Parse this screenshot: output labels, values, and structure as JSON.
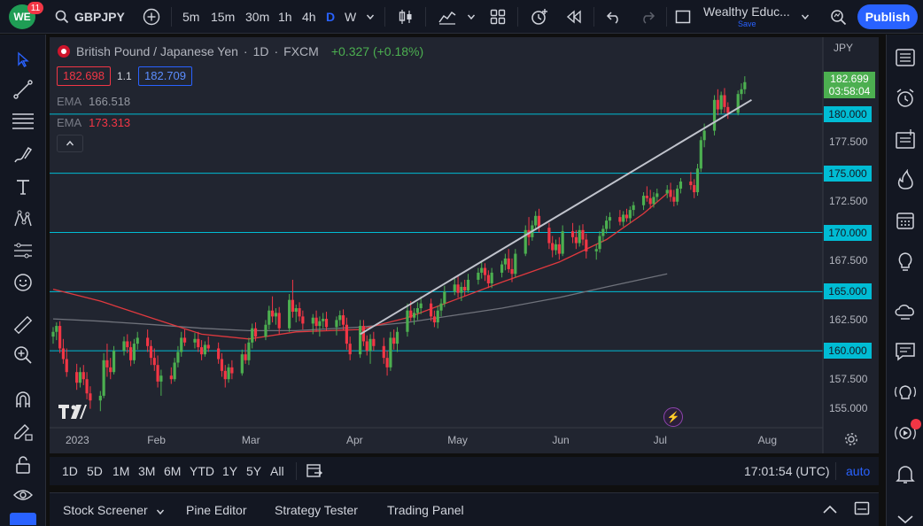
{
  "header": {
    "logo_text": "WE",
    "badge": "11",
    "symbol": "GBPJPY",
    "timeframes": [
      "5m",
      "15m",
      "30m",
      "1h",
      "4h",
      "D",
      "W"
    ],
    "active_timeframe": "D",
    "layout_name": "Wealthy Educ...",
    "layout_status": "Save",
    "publish_label": "Publish"
  },
  "legend": {
    "title": "British Pound / Japanese Yen",
    "interval": "1D",
    "source": "FXCM",
    "change": "+0.327 (+0.18%)",
    "bid": "182.698",
    "spread": "1.1",
    "ask": "182.709",
    "ema1_label": "EMA",
    "ema1_value": "166.518",
    "ema2_label": "EMA",
    "ema2_value": "173.313"
  },
  "price_axis": {
    "currency": "JPY",
    "current_price": "182.699",
    "countdown": "03:58:04",
    "ticks": [
      {
        "v": 180.0,
        "label": "180.000",
        "hline": true
      },
      {
        "v": 177.5,
        "label": "177.500",
        "hline": false
      },
      {
        "v": 175.0,
        "label": "175.000",
        "hline": true
      },
      {
        "v": 172.5,
        "label": "172.500",
        "hline": false
      },
      {
        "v": 170.0,
        "label": "170.000",
        "hline": true
      },
      {
        "v": 167.5,
        "label": "167.500",
        "hline": false
      },
      {
        "v": 165.0,
        "label": "165.000",
        "hline": true
      },
      {
        "v": 162.5,
        "label": "162.500",
        "hline": false
      },
      {
        "v": 160.0,
        "label": "160.000",
        "hline": true
      },
      {
        "v": 157.5,
        "label": "157.500",
        "hline": false
      },
      {
        "v": 155.0,
        "label": "155.000",
        "hline": false
      }
    ]
  },
  "time_axis": [
    "2023",
    "Feb",
    "Mar",
    "Apr",
    "May",
    "Jun",
    "Jul",
    "Aug"
  ],
  "range_bar": {
    "ranges": [
      "1D",
      "5D",
      "1M",
      "3M",
      "6M",
      "YTD",
      "1Y",
      "5Y",
      "All"
    ],
    "clock": "17:01:54 (UTC)",
    "scale": "auto"
  },
  "bottom_panel": {
    "tabs": [
      "Stock Screener",
      "Pine Editor",
      "Strategy Tester",
      "Trading Panel"
    ]
  },
  "colors": {
    "up": "#4caf50",
    "down": "#f23645",
    "hline": "#00bcd4",
    "trendline": "#c0c3cc",
    "ema_fast": "#e0393e",
    "ema_slow": "#6f727b",
    "accent": "#2962ff"
  },
  "chart_data": {
    "type": "candlestick",
    "symbol": "GBPJPY",
    "interval": "1D",
    "x_range": [
      "2023-01-02",
      "2023-08-15"
    ],
    "y_range": [
      153.5,
      186.5
    ],
    "horizontal_levels": [
      180.0,
      175.0,
      170.0,
      165.0,
      160.0
    ],
    "trendline": [
      {
        "date": "2023-04-03",
        "price": 161.4
      },
      {
        "date": "2023-07-28",
        "price": 181.2
      }
    ],
    "ema_fast": [
      [
        "2023-01-02",
        165.2
      ],
      [
        "2023-01-16",
        164.2
      ],
      [
        "2023-02-01",
        162.7
      ],
      [
        "2023-02-15",
        161.4
      ],
      [
        "2023-03-01",
        161.0
      ],
      [
        "2023-03-15",
        161.6
      ],
      [
        "2023-04-03",
        161.8
      ],
      [
        "2023-04-17",
        162.8
      ],
      [
        "2023-05-01",
        164.3
      ],
      [
        "2023-05-15",
        165.8
      ],
      [
        "2023-06-01",
        167.5
      ],
      [
        "2023-06-15",
        169.4
      ],
      [
        "2023-06-26",
        171.6
      ],
      [
        "2023-07-03",
        173.3
      ]
    ],
    "ema_slow": [
      [
        "2023-01-02",
        162.7
      ],
      [
        "2023-01-16",
        162.5
      ],
      [
        "2023-02-01",
        162.2
      ],
      [
        "2023-02-15",
        161.9
      ],
      [
        "2023-03-01",
        161.7
      ],
      [
        "2023-03-15",
        161.7
      ],
      [
        "2023-04-03",
        162.0
      ],
      [
        "2023-04-17",
        162.4
      ],
      [
        "2023-05-01",
        163.0
      ],
      [
        "2023-05-15",
        163.6
      ],
      [
        "2023-06-01",
        164.5
      ],
      [
        "2023-06-15",
        165.4
      ],
      [
        "2023-07-03",
        166.5
      ]
    ],
    "candles": [
      [
        "2023-01-02",
        161.2,
        162.0,
        160.6,
        161.6
      ],
      [
        "2023-01-03",
        161.6,
        162.4,
        160.9,
        162.1
      ],
      [
        "2023-01-04",
        162.1,
        162.5,
        159.8,
        160.2
      ],
      [
        "2023-01-05",
        160.2,
        161.0,
        158.9,
        159.3
      ],
      [
        "2023-01-06",
        159.3,
        160.2,
        157.8,
        158.2
      ],
      [
        "2023-01-09",
        158.2,
        158.9,
        156.7,
        157.3
      ],
      [
        "2023-01-10",
        157.3,
        158.6,
        156.9,
        158.2
      ],
      [
        "2023-01-11",
        158.2,
        158.8,
        157.1,
        157.6
      ],
      [
        "2023-01-12",
        157.6,
        158.2,
        155.9,
        156.4
      ],
      [
        "2023-01-13",
        156.4,
        157.0,
        155.1,
        155.8
      ],
      [
        "2023-01-16",
        155.8,
        156.6,
        154.9,
        156.2
      ],
      [
        "2023-01-17",
        156.2,
        159.8,
        156.0,
        159.2
      ],
      [
        "2023-01-18",
        159.2,
        160.6,
        157.8,
        158.6
      ],
      [
        "2023-01-19",
        158.6,
        159.4,
        157.6,
        158.2
      ],
      [
        "2023-01-20",
        158.2,
        160.4,
        158.0,
        160.0
      ],
      [
        "2023-01-23",
        160.0,
        161.2,
        159.6,
        160.8
      ],
      [
        "2023-01-24",
        160.8,
        161.4,
        159.8,
        160.3
      ],
      [
        "2023-01-25",
        160.3,
        160.8,
        158.7,
        159.2
      ],
      [
        "2023-01-26",
        159.2,
        161.0,
        158.9,
        160.6
      ],
      [
        "2023-01-27",
        160.6,
        161.6,
        160.1,
        161.1
      ],
      [
        "2023-01-30",
        161.1,
        161.8,
        159.9,
        160.4
      ],
      [
        "2023-01-31",
        160.4,
        160.9,
        158.8,
        159.4
      ],
      [
        "2023-02-01",
        159.4,
        160.2,
        158.3,
        158.8
      ],
      [
        "2023-02-02",
        158.8,
        159.6,
        156.9,
        157.4
      ],
      [
        "2023-02-03",
        157.4,
        158.4,
        156.2,
        157.9
      ],
      [
        "2023-02-06",
        157.9,
        158.6,
        157.2,
        157.6
      ],
      [
        "2023-02-07",
        157.6,
        159.4,
        157.4,
        159.0
      ],
      [
        "2023-02-08",
        159.0,
        160.4,
        158.6,
        159.9
      ],
      [
        "2023-02-09",
        159.9,
        161.6,
        159.5,
        161.1
      ],
      [
        "2023-02-10",
        161.1,
        161.8,
        160.4,
        160.7
      ],
      [
        "2023-02-13",
        160.7,
        161.5,
        160.2,
        161.0
      ],
      [
        "2023-02-14",
        161.0,
        161.6,
        159.9,
        160.3
      ],
      [
        "2023-02-15",
        160.3,
        160.9,
        159.2,
        159.7
      ],
      [
        "2023-02-16",
        159.7,
        160.8,
        159.5,
        160.5
      ],
      [
        "2023-02-17",
        160.5,
        161.2,
        159.9,
        160.2
      ],
      [
        "2023-02-20",
        160.2,
        160.7,
        158.9,
        159.3
      ],
      [
        "2023-02-21",
        159.3,
        159.8,
        157.8,
        158.3
      ],
      [
        "2023-02-22",
        158.3,
        158.8,
        156.9,
        157.6
      ],
      [
        "2023-02-23",
        157.6,
        158.9,
        157.3,
        158.6
      ],
      [
        "2023-02-24",
        158.6,
        159.2,
        157.6,
        158.1
      ],
      [
        "2023-02-27",
        158.1,
        160.1,
        157.9,
        159.7
      ],
      [
        "2023-02-28",
        159.7,
        160.6,
        158.9,
        159.2
      ],
      [
        "2023-03-01",
        159.2,
        161.1,
        158.8,
        160.7
      ],
      [
        "2023-03-02",
        160.7,
        162.3,
        160.2,
        161.9
      ],
      [
        "2023-03-03",
        161.9,
        162.4,
        160.8,
        161.2
      ],
      [
        "2023-03-06",
        161.2,
        162.6,
        160.9,
        162.2
      ],
      [
        "2023-03-07",
        162.2,
        163.8,
        161.8,
        163.4
      ],
      [
        "2023-03-08",
        163.4,
        164.6,
        162.4,
        162.9
      ],
      [
        "2023-03-09",
        162.9,
        163.6,
        162.2,
        163.2
      ],
      [
        "2023-03-10",
        163.2,
        163.7,
        161.4,
        161.9
      ],
      [
        "2023-03-13",
        161.9,
        164.8,
        161.6,
        164.3
      ],
      [
        "2023-03-14",
        164.3,
        166.0,
        162.8,
        163.3
      ],
      [
        "2023-03-15",
        163.3,
        163.9,
        162.4,
        163.6
      ],
      [
        "2023-03-16",
        163.6,
        164.1,
        162.5,
        162.9
      ],
      [
        "2023-03-17",
        162.9,
        163.4,
        161.8,
        162.3
      ],
      [
        "2023-03-20",
        162.3,
        163.1,
        161.4,
        162.8
      ],
      [
        "2023-03-21",
        162.8,
        163.4,
        161.6,
        162.1
      ],
      [
        "2023-03-22",
        162.1,
        162.9,
        161.2,
        162.5
      ],
      [
        "2023-03-23",
        162.5,
        163.2,
        161.9,
        162.7
      ],
      [
        "2023-03-24",
        162.7,
        163.3,
        161.7,
        162.0
      ],
      [
        "2023-03-27",
        162.0,
        162.9,
        161.3,
        162.6
      ],
      [
        "2023-03-28",
        162.6,
        163.4,
        162.1,
        163.0
      ],
      [
        "2023-03-29",
        163.0,
        163.5,
        161.7,
        162.2
      ],
      [
        "2023-03-30",
        162.2,
        162.8,
        160.1,
        160.6
      ],
      [
        "2023-03-31",
        160.6,
        161.2,
        159.2,
        159.7
      ],
      [
        "2023-04-03",
        159.7,
        162.6,
        159.4,
        162.1
      ],
      [
        "2023-04-04",
        162.1,
        162.6,
        160.4,
        160.8
      ],
      [
        "2023-04-05",
        160.8,
        161.3,
        159.6,
        160.0
      ],
      [
        "2023-04-06",
        160.0,
        161.4,
        158.9,
        161.0
      ],
      [
        "2023-04-07",
        161.0,
        161.6,
        160.0,
        160.4
      ],
      [
        "2023-04-10",
        160.4,
        161.1,
        158.9,
        159.4
      ],
      [
        "2023-04-11",
        159.4,
        160.0,
        157.9,
        158.6
      ],
      [
        "2023-04-12",
        158.6,
        161.6,
        158.3,
        161.1
      ],
      [
        "2023-04-13",
        161.1,
        161.8,
        160.1,
        160.6
      ],
      [
        "2023-04-14",
        160.6,
        162.0,
        159.9,
        161.6
      ],
      [
        "2023-04-17",
        161.6,
        164.0,
        161.2,
        163.4
      ],
      [
        "2023-04-18",
        163.4,
        164.2,
        162.5,
        162.8
      ],
      [
        "2023-04-19",
        162.8,
        163.6,
        162.2,
        163.2
      ],
      [
        "2023-04-20",
        163.2,
        164.1,
        162.6,
        163.6
      ],
      [
        "2023-04-21",
        163.6,
        164.6,
        163.1,
        164.0
      ],
      [
        "2023-04-24",
        164.0,
        164.4,
        162.5,
        162.9
      ],
      [
        "2023-04-25",
        162.9,
        163.4,
        162.0,
        162.4
      ],
      [
        "2023-04-26",
        162.4,
        163.8,
        161.9,
        163.4
      ],
      [
        "2023-04-27",
        163.4,
        164.4,
        162.9,
        164.0
      ],
      [
        "2023-04-28",
        164.0,
        165.5,
        163.7,
        165.0
      ],
      [
        "2023-05-01",
        165.0,
        166.1,
        164.7,
        165.6
      ],
      [
        "2023-05-02",
        165.6,
        166.3,
        164.5,
        164.9
      ],
      [
        "2023-05-03",
        164.9,
        165.8,
        164.2,
        165.4
      ],
      [
        "2023-05-04",
        165.4,
        166.0,
        164.6,
        165.1
      ],
      [
        "2023-05-05",
        165.1,
        166.5,
        164.9,
        166.0
      ],
      [
        "2023-05-08",
        166.0,
        167.0,
        165.6,
        166.6
      ],
      [
        "2023-05-09",
        166.6,
        167.5,
        166.1,
        167.0
      ],
      [
        "2023-05-10",
        167.0,
        167.4,
        165.9,
        166.4
      ],
      [
        "2023-05-11",
        166.4,
        166.8,
        165.3,
        165.7
      ],
      [
        "2023-05-12",
        165.7,
        167.0,
        165.3,
        166.6
      ],
      [
        "2023-05-15",
        166.6,
        167.6,
        166.2,
        167.3
      ],
      [
        "2023-05-16",
        167.3,
        168.2,
        166.8,
        167.8
      ],
      [
        "2023-05-17",
        167.8,
        168.6,
        166.6,
        166.9
      ],
      [
        "2023-05-18",
        166.9,
        167.8,
        165.8,
        166.5
      ],
      [
        "2023-05-19",
        166.5,
        168.6,
        166.2,
        168.2
      ],
      [
        "2023-05-22",
        168.2,
        170.6,
        168.0,
        170.2
      ],
      [
        "2023-05-23",
        170.2,
        171.3,
        168.9,
        169.6
      ],
      [
        "2023-05-24",
        169.6,
        171.0,
        169.3,
        170.6
      ],
      [
        "2023-05-25",
        170.6,
        171.8,
        170.2,
        171.4
      ],
      [
        "2023-05-26",
        171.4,
        172.0,
        170.0,
        170.4
      ],
      [
        "2023-05-29",
        170.4,
        170.8,
        168.6,
        169.1
      ],
      [
        "2023-05-30",
        169.1,
        169.7,
        167.9,
        168.5
      ],
      [
        "2023-05-31",
        168.5,
        169.4,
        168.1,
        169.0
      ],
      [
        "2023-06-01",
        169.0,
        169.6,
        167.7,
        168.2
      ],
      [
        "2023-06-02",
        168.2,
        170.6,
        168.0,
        170.1
      ],
      [
        "2023-06-05",
        170.1,
        170.8,
        169.1,
        169.6
      ],
      [
        "2023-06-06",
        169.6,
        170.2,
        168.6,
        169.1
      ],
      [
        "2023-06-07",
        169.1,
        170.6,
        168.8,
        170.2
      ],
      [
        "2023-06-08",
        170.2,
        170.7,
        168.9,
        169.4
      ],
      [
        "2023-06-09",
        169.4,
        169.9,
        167.8,
        168.4
      ],
      [
        "2023-06-12",
        168.4,
        169.0,
        167.7,
        168.6
      ],
      [
        "2023-06-13",
        168.6,
        170.1,
        168.3,
        169.7
      ],
      [
        "2023-06-14",
        169.7,
        170.6,
        169.2,
        170.3
      ],
      [
        "2023-06-15",
        170.3,
        171.4,
        169.9,
        171.0
      ],
      [
        "2023-06-16",
        171.0,
        171.7,
        170.3,
        171.3
      ],
      [
        "2023-06-19",
        171.3,
        171.9,
        170.6,
        170.9
      ],
      [
        "2023-06-20",
        170.9,
        171.8,
        170.5,
        171.5
      ],
      [
        "2023-06-21",
        171.5,
        172.0,
        170.9,
        171.2
      ],
      [
        "2023-06-22",
        171.2,
        172.2,
        170.8,
        171.9
      ],
      [
        "2023-06-23",
        171.9,
        172.6,
        171.4,
        172.3
      ],
      [
        "2023-06-26",
        172.3,
        173.4,
        171.9,
        173.1
      ],
      [
        "2023-06-27",
        173.1,
        173.9,
        172.6,
        172.9
      ],
      [
        "2023-06-28",
        172.9,
        173.6,
        172.0,
        172.4
      ],
      [
        "2023-06-29",
        172.4,
        173.4,
        172.1,
        173.0
      ],
      [
        "2023-06-30",
        173.0,
        173.7,
        172.6,
        173.3
      ],
      [
        "2023-07-03",
        173.3,
        174.0,
        172.9,
        173.6
      ],
      [
        "2023-07-04",
        173.6,
        174.2,
        172.6,
        173.0
      ],
      [
        "2023-07-05",
        173.0,
        173.6,
        172.2,
        172.6
      ],
      [
        "2023-07-06",
        172.6,
        174.0,
        172.3,
        173.7
      ],
      [
        "2023-07-07",
        173.7,
        174.6,
        173.3,
        174.3
      ],
      [
        "2023-07-10",
        174.3,
        175.1,
        173.6,
        174.0
      ],
      [
        "2023-07-11",
        174.0,
        174.5,
        172.9,
        173.4
      ],
      [
        "2023-07-12",
        173.4,
        175.8,
        173.1,
        175.4
      ],
      [
        "2023-07-13",
        175.4,
        178.1,
        175.1,
        177.8
      ],
      [
        "2023-07-14",
        177.8,
        179.2,
        177.2,
        178.6
      ],
      [
        "2023-07-17",
        178.6,
        181.6,
        178.2,
        181.2
      ],
      [
        "2023-07-18",
        181.2,
        182.1,
        179.9,
        180.4
      ],
      [
        "2023-07-19",
        180.4,
        181.9,
        180.0,
        181.6
      ],
      [
        "2023-07-20",
        181.6,
        182.2,
        180.1,
        180.6
      ],
      [
        "2023-07-21",
        180.6,
        181.0,
        179.6,
        180.1
      ],
      [
        "2023-07-24",
        180.1,
        182.0,
        179.9,
        181.7
      ],
      [
        "2023-07-25",
        181.7,
        182.6,
        181.2,
        182.1
      ],
      [
        "2023-07-26",
        182.1,
        183.2,
        181.7,
        182.7
      ]
    ]
  }
}
